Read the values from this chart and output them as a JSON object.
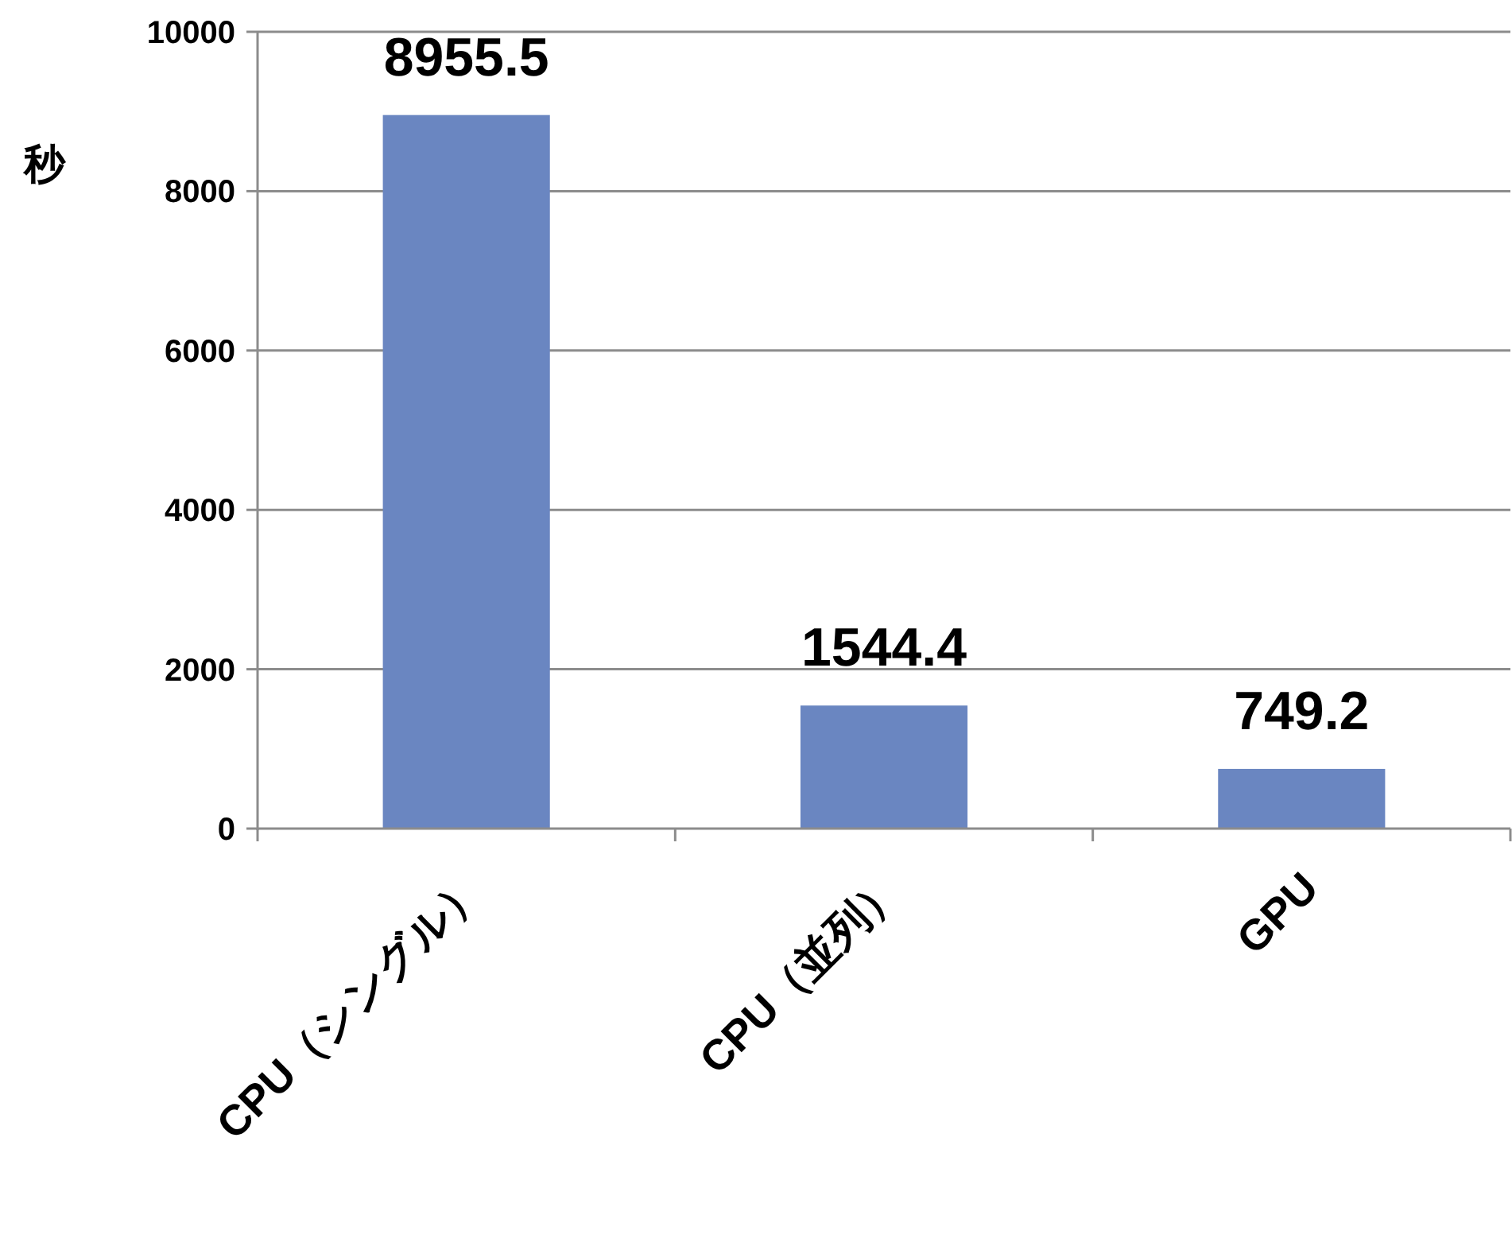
{
  "chart_data": {
    "type": "bar",
    "ylabel": "秒",
    "categories": [
      "CPU（シングル）",
      "CPU（並列）",
      "GPU"
    ],
    "values": [
      8955.5,
      1544.4,
      749.2
    ],
    "color": "#6a86c1",
    "ylim": [
      0,
      10000
    ],
    "yticks": [
      0,
      2000,
      4000,
      6000,
      8000,
      10000
    ],
    "grid": "y",
    "data_labels": true
  }
}
